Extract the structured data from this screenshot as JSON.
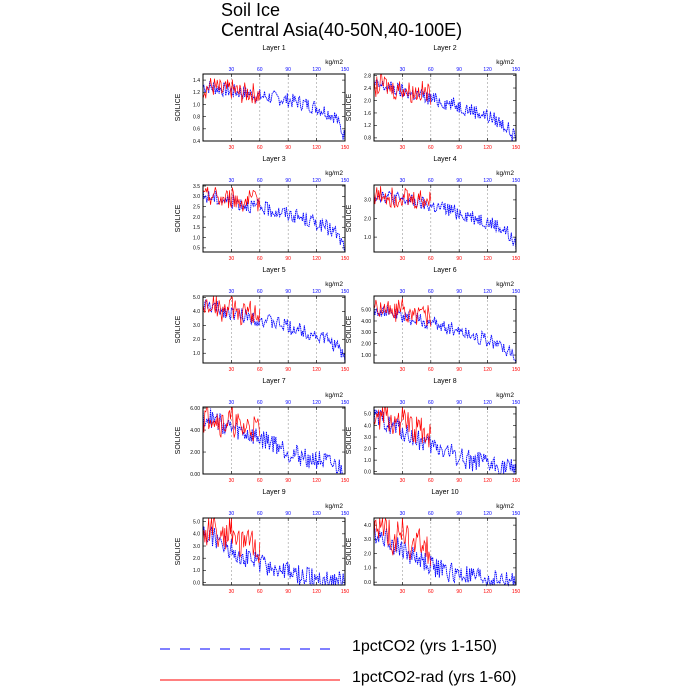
{
  "title": "Soil Ice",
  "subtitle": "Central Asia(40-50N,40-100E)",
  "legend": [
    {
      "name": "1pctCO2 (yrs 1-150)",
      "color": "#0000ff",
      "style": "dashed"
    },
    {
      "name": "1pctCO2-rad (yrs 1-60)",
      "color": "#ff0000",
      "style": "solid"
    }
  ],
  "chart_data": [
    {
      "type": "line",
      "title": "Layer 1",
      "ylabel": "SOILICE",
      "units": "kg/m2",
      "xlim": [
        0,
        150
      ],
      "ylim": [
        0.4,
        1.5
      ],
      "xticks": [
        30,
        60,
        90,
        120,
        150
      ],
      "yticks": [
        "0.4",
        "0.6",
        "0.8",
        "1.0",
        "1.2",
        "1.4"
      ],
      "yvals": [
        0.4,
        0.6,
        0.8,
        1.0,
        1.2,
        1.4
      ],
      "grid_x": true,
      "series": [
        {
          "name": "1pctCO2 (yrs 1-150)",
          "color": "#0000ff",
          "x": [
            0,
            10,
            20,
            30,
            40,
            50,
            60,
            70,
            80,
            90,
            100,
            110,
            120,
            130,
            140,
            150
          ],
          "y": [
            1.3,
            1.28,
            1.25,
            1.22,
            1.2,
            1.17,
            1.14,
            1.12,
            1.1,
            1.07,
            1.04,
            1.0,
            0.95,
            0.88,
            0.8,
            0.45
          ]
        },
        {
          "name": "1pctCO2-rad (yrs 1-60)",
          "color": "#ff0000",
          "x": [
            0,
            10,
            20,
            30,
            40,
            50,
            60
          ],
          "y": [
            1.25,
            1.3,
            1.22,
            1.25,
            1.18,
            1.2,
            1.15
          ]
        }
      ]
    },
    {
      "type": "line",
      "title": "Layer 2",
      "ylabel": "SOILICE",
      "units": "kg/m2",
      "xlim": [
        0,
        150
      ],
      "ylim": [
        0.7,
        2.85
      ],
      "xticks": [
        30,
        60,
        90,
        120,
        150
      ],
      "yticks": [
        "0.8",
        "1.2",
        "1.6",
        "2.0",
        "2.4",
        "2.8"
      ],
      "yvals": [
        0.8,
        1.2,
        1.6,
        2.0,
        2.4,
        2.8
      ],
      "grid_x": true,
      "series": [
        {
          "name": "1pctCO2 (yrs 1-150)",
          "color": "#0000ff",
          "x": [
            0,
            10,
            20,
            30,
            40,
            50,
            60,
            70,
            80,
            90,
            100,
            110,
            120,
            130,
            140,
            150
          ],
          "y": [
            2.5,
            2.45,
            2.38,
            2.3,
            2.22,
            2.15,
            2.05,
            1.98,
            1.9,
            1.82,
            1.72,
            1.62,
            1.5,
            1.35,
            1.15,
            0.75
          ]
        },
        {
          "name": "1pctCO2-rad (yrs 1-60)",
          "color": "#ff0000",
          "x": [
            0,
            10,
            20,
            30,
            40,
            50,
            60
          ],
          "y": [
            2.4,
            2.55,
            2.35,
            2.4,
            2.25,
            2.3,
            2.2
          ]
        }
      ]
    },
    {
      "type": "line",
      "title": "Layer 3",
      "ylabel": "SOILICE",
      "units": "kg/m2",
      "xlim": [
        0,
        150
      ],
      "ylim": [
        0.3,
        3.55
      ],
      "xticks": [
        30,
        60,
        90,
        120,
        150
      ],
      "yticks": [
        "0.5",
        "1.0",
        "1.5",
        "2.0",
        "2.5",
        "3.0",
        "3.5"
      ],
      "yvals": [
        0.5,
        1.0,
        1.5,
        2.0,
        2.5,
        3.0,
        3.5
      ],
      "grid_x": true,
      "series": [
        {
          "name": "1pctCO2 (yrs 1-150)",
          "color": "#0000ff",
          "x": [
            0,
            10,
            20,
            30,
            40,
            50,
            60,
            70,
            80,
            90,
            100,
            110,
            120,
            130,
            140,
            150
          ],
          "y": [
            3.0,
            2.95,
            2.85,
            2.75,
            2.65,
            2.55,
            2.45,
            2.35,
            2.25,
            2.15,
            2.0,
            1.85,
            1.7,
            1.5,
            1.25,
            0.5
          ]
        },
        {
          "name": "1pctCO2-rad (yrs 1-60)",
          "color": "#ff0000",
          "x": [
            0,
            10,
            20,
            30,
            40,
            50,
            60
          ],
          "y": [
            2.9,
            3.1,
            2.85,
            2.95,
            2.75,
            2.8,
            2.7
          ]
        }
      ]
    },
    {
      "type": "line",
      "title": "Layer 4",
      "ylabel": "SOILICE",
      "units": "kg/m2",
      "xlim": [
        0,
        150
      ],
      "ylim": [
        0.2,
        3.8
      ],
      "xticks": [
        30,
        60,
        90,
        120,
        150
      ],
      "yticks": [
        "1.0",
        "2.0",
        "3.0"
      ],
      "yvals": [
        1.0,
        2.0,
        3.0
      ],
      "grid_x": true,
      "series": [
        {
          "name": "1pctCO2 (yrs 1-150)",
          "color": "#0000ff",
          "x": [
            0,
            10,
            20,
            30,
            40,
            50,
            60,
            70,
            80,
            90,
            100,
            110,
            120,
            130,
            140,
            150
          ],
          "y": [
            3.3,
            3.25,
            3.1,
            3.0,
            2.9,
            2.8,
            2.65,
            2.55,
            2.45,
            2.3,
            2.15,
            2.0,
            1.8,
            1.6,
            1.3,
            0.5
          ]
        },
        {
          "name": "1pctCO2-rad (yrs 1-60)",
          "color": "#ff0000",
          "x": [
            0,
            10,
            20,
            30,
            40,
            50,
            60
          ],
          "y": [
            3.2,
            3.4,
            3.1,
            3.3,
            3.0,
            3.1,
            2.9
          ]
        }
      ]
    },
    {
      "type": "line",
      "title": "Layer 5",
      "ylabel": "SOILICE",
      "units": "kg/m2",
      "xlim": [
        0,
        150
      ],
      "ylim": [
        0.3,
        5.1
      ],
      "xticks": [
        30,
        60,
        90,
        120,
        150
      ],
      "yticks": [
        "1.0",
        "2.0",
        "3.0",
        "4.0",
        "5.0"
      ],
      "yvals": [
        1.0,
        2.0,
        3.0,
        4.0,
        5.0
      ],
      "grid_x": true,
      "series": [
        {
          "name": "1pctCO2 (yrs 1-150)",
          "color": "#0000ff",
          "x": [
            0,
            10,
            20,
            30,
            40,
            50,
            60,
            70,
            80,
            90,
            100,
            110,
            120,
            130,
            140,
            150
          ],
          "y": [
            4.4,
            4.3,
            4.1,
            3.9,
            3.75,
            3.6,
            3.4,
            3.25,
            3.1,
            2.9,
            2.7,
            2.5,
            2.25,
            2.0,
            1.6,
            0.6
          ]
        },
        {
          "name": "1pctCO2-rad (yrs 1-60)",
          "color": "#ff0000",
          "x": [
            0,
            10,
            20,
            30,
            40,
            50,
            60
          ],
          "y": [
            4.2,
            4.6,
            4.0,
            4.3,
            3.8,
            4.0,
            3.7
          ]
        }
      ]
    },
    {
      "type": "line",
      "title": "Layer 6",
      "ylabel": "SOILICE",
      "units": "kg/m2",
      "xlim": [
        0,
        150
      ],
      "ylim": [
        0.3,
        6.2
      ],
      "xticks": [
        30,
        60,
        90,
        120,
        150
      ],
      "yticks": [
        "1.00",
        "2.00",
        "3.00",
        "4.00",
        "5.00"
      ],
      "yvals": [
        1.0,
        2.0,
        3.0,
        4.0,
        5.0
      ],
      "grid_x": true,
      "series": [
        {
          "name": "1pctCO2 (yrs 1-150)",
          "color": "#0000ff",
          "x": [
            0,
            10,
            20,
            30,
            40,
            50,
            60,
            70,
            80,
            90,
            100,
            110,
            120,
            130,
            140,
            150
          ],
          "y": [
            5.0,
            4.9,
            4.6,
            4.4,
            4.2,
            4.0,
            3.8,
            3.6,
            3.4,
            3.15,
            2.9,
            2.6,
            2.3,
            2.0,
            1.5,
            0.6
          ]
        },
        {
          "name": "1pctCO2-rad (yrs 1-60)",
          "color": "#ff0000",
          "x": [
            0,
            10,
            20,
            30,
            40,
            50,
            60
          ],
          "y": [
            4.8,
            5.4,
            4.7,
            5.1,
            4.4,
            4.8,
            4.3
          ]
        }
      ]
    },
    {
      "type": "line",
      "title": "Layer 7",
      "ylabel": "SOILICE",
      "units": "kg/m2",
      "xlim": [
        0,
        150
      ],
      "ylim": [
        0,
        6.1
      ],
      "xticks": [
        30,
        60,
        90,
        120,
        150
      ],
      "yticks": [
        "0.00",
        "2.00",
        "4.00",
        "6.00"
      ],
      "yvals": [
        0,
        2,
        4,
        6
      ],
      "grid_x": true,
      "series": [
        {
          "name": "1pctCO2 (yrs 1-150)",
          "color": "#0000ff",
          "x": [
            0,
            10,
            20,
            30,
            40,
            50,
            60,
            70,
            80,
            90,
            100,
            110,
            120,
            130,
            140,
            150
          ],
          "y": [
            5.2,
            5.0,
            4.6,
            4.2,
            3.8,
            3.5,
            3.2,
            3.0,
            2.6,
            2.0,
            1.7,
            1.5,
            1.3,
            1.0,
            0.7,
            0.3
          ]
        },
        {
          "name": "1pctCO2-rad (yrs 1-60)",
          "color": "#ff0000",
          "x": [
            0,
            10,
            20,
            30,
            40,
            50,
            60
          ],
          "y": [
            5.0,
            5.5,
            4.5,
            4.8,
            4.0,
            4.3,
            3.9
          ]
        }
      ]
    },
    {
      "type": "line",
      "title": "Layer 8",
      "ylabel": "SOILICE",
      "units": "kg/m2",
      "xlim": [
        0,
        150
      ],
      "ylim": [
        -0.2,
        5.6
      ],
      "xticks": [
        30,
        60,
        90,
        120,
        150
      ],
      "yticks": [
        "0.0",
        "1.0",
        "2.0",
        "3.0",
        "4.0",
        "5.0"
      ],
      "yvals": [
        0,
        1,
        2,
        3,
        4,
        5
      ],
      "grid_x": true,
      "series": [
        {
          "name": "1pctCO2 (yrs 1-150)",
          "color": "#0000ff",
          "x": [
            0,
            10,
            20,
            30,
            40,
            50,
            60,
            70,
            80,
            90,
            100,
            110,
            120,
            130,
            140,
            150
          ],
          "y": [
            4.6,
            4.4,
            4.0,
            3.5,
            3.0,
            2.6,
            2.2,
            2.0,
            1.7,
            1.3,
            1.0,
            0.8,
            0.6,
            0.45,
            0.3,
            0.1
          ]
        },
        {
          "name": "1pctCO2-rad (yrs 1-60)",
          "color": "#ff0000",
          "x": [
            0,
            10,
            20,
            30,
            40,
            50,
            60
          ],
          "y": [
            4.5,
            5.2,
            4.0,
            4.6,
            3.4,
            3.8,
            3.0
          ]
        }
      ]
    },
    {
      "type": "line",
      "title": "Layer 9",
      "ylabel": "SOILICE",
      "units": "kg/m2",
      "xlim": [
        0,
        150
      ],
      "ylim": [
        -0.2,
        5.3
      ],
      "xticks": [
        30,
        60,
        90,
        120,
        150
      ],
      "yticks": [
        "0.0",
        "1.0",
        "2.0",
        "3.0",
        "4.0",
        "5.0"
      ],
      "yvals": [
        0,
        1,
        2,
        3,
        4,
        5
      ],
      "grid_x": true,
      "series": [
        {
          "name": "1pctCO2 (yrs 1-150)",
          "color": "#0000ff",
          "x": [
            0,
            10,
            20,
            30,
            40,
            50,
            60,
            70,
            80,
            90,
            100,
            110,
            120,
            130,
            140,
            150
          ],
          "y": [
            4.0,
            3.8,
            3.2,
            2.8,
            2.3,
            1.9,
            1.6,
            1.3,
            1.0,
            0.8,
            0.6,
            0.45,
            0.35,
            0.25,
            0.15,
            0.05
          ]
        },
        {
          "name": "1pctCO2-rad (yrs 1-60)",
          "color": "#ff0000",
          "x": [
            0,
            10,
            20,
            30,
            40,
            50,
            60
          ],
          "y": [
            3.8,
            4.9,
            3.5,
            4.6,
            2.8,
            3.6,
            2.4
          ]
        }
      ]
    },
    {
      "type": "line",
      "title": "Layer 10",
      "ylabel": "SOILICE",
      "units": "kg/m2",
      "xlim": [
        0,
        150
      ],
      "ylim": [
        -0.2,
        4.5
      ],
      "xticks": [
        30,
        60,
        90,
        120,
        150
      ],
      "yticks": [
        "0.0",
        "1.0",
        "2.0",
        "3.0",
        "4.0"
      ],
      "yvals": [
        0,
        1,
        2,
        3,
        4
      ],
      "grid_x": true,
      "series": [
        {
          "name": "1pctCO2 (yrs 1-150)",
          "color": "#0000ff",
          "x": [
            0,
            10,
            20,
            30,
            40,
            50,
            60,
            70,
            80,
            90,
            100,
            110,
            120,
            130,
            140,
            150
          ],
          "y": [
            3.4,
            3.2,
            2.7,
            2.3,
            1.9,
            1.5,
            1.2,
            0.9,
            0.7,
            0.5,
            0.4,
            0.3,
            0.22,
            0.15,
            0.1,
            0.05
          ]
        },
        {
          "name": "1pctCO2-rad (yrs 1-60)",
          "color": "#ff0000",
          "x": [
            0,
            10,
            20,
            30,
            40,
            50,
            60
          ],
          "y": [
            3.2,
            4.2,
            2.9,
            3.8,
            2.3,
            3.0,
            1.9
          ]
        }
      ]
    }
  ]
}
